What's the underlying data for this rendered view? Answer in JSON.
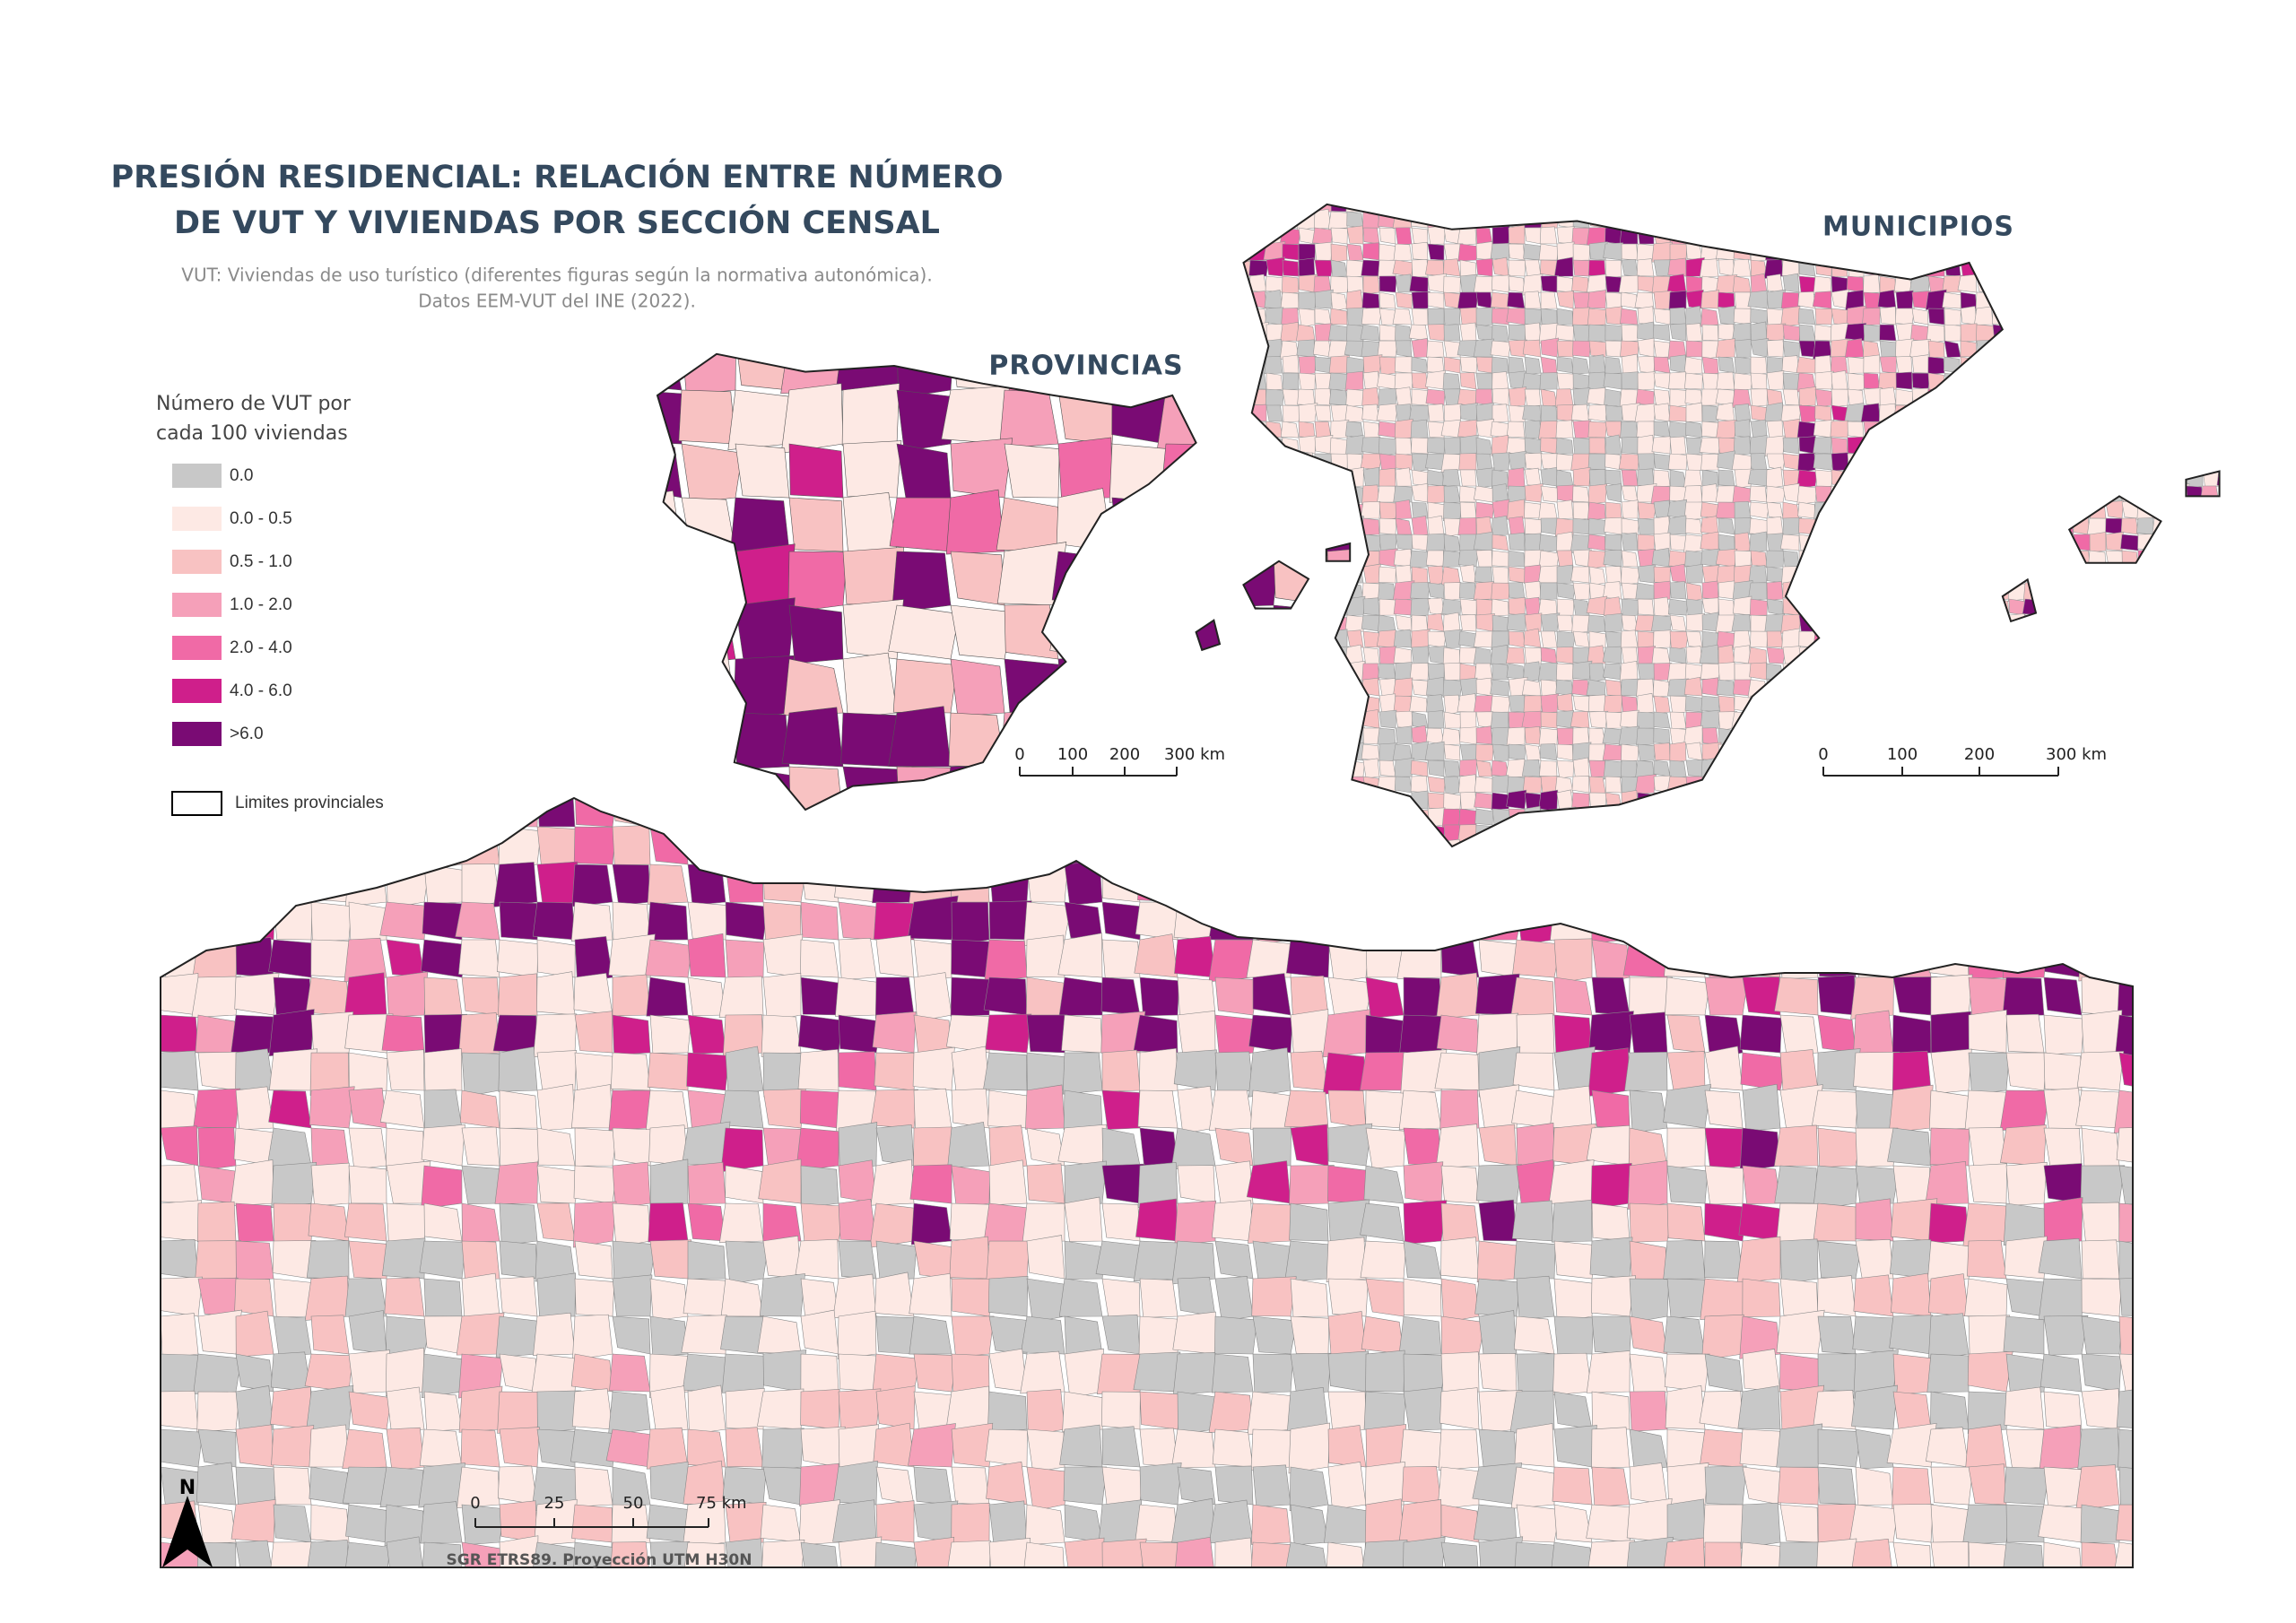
{
  "title": [
    "PRESIÓN RESIDENCIAL: RELACIÓN ENTRE NÚMERO",
    "DE VUT Y VIVIENDAS POR SECCIÓN CENSAL"
  ],
  "subtitle": [
    "VUT: Viviendas de uso turístico (diferentes figuras según la normativa autonómica).",
    "Datos EEM-VUT del INE (2022)."
  ],
  "legend": {
    "title": [
      "Número de VUT por",
      "cada 100 viviendas"
    ],
    "items": [
      {
        "label": "0.0",
        "color": "#c8c8c8"
      },
      {
        "label": "0.0 - 0.5",
        "color": "#fde9e4"
      },
      {
        "label": "0.5 - 1.0",
        "color": "#f8c2c2"
      },
      {
        "label": "1.0 - 2.0",
        "color": "#f5a0b9"
      },
      {
        "label": "2.0 - 4.0",
        "color": "#f06aa6"
      },
      {
        "label": "4.0 - 6.0",
        "color": "#cf1f8b"
      },
      {
        "label": ">6.0",
        "color": "#7a0b74"
      }
    ],
    "boundary": "Limites provinciales"
  },
  "maps": {
    "provincias": {
      "label": "PROVINCIAS",
      "scale": [
        "0",
        "100",
        "200",
        "300 km"
      ]
    },
    "municipios": {
      "label": "MUNICIPIOS",
      "scale": [
        "0",
        "100",
        "200",
        "300 km"
      ]
    },
    "detail": {
      "scale": [
        "0",
        "25",
        "50",
        "75 km"
      ]
    }
  },
  "north": "N",
  "projection": "SGR ETRS89. Proyección UTM H30N"
}
